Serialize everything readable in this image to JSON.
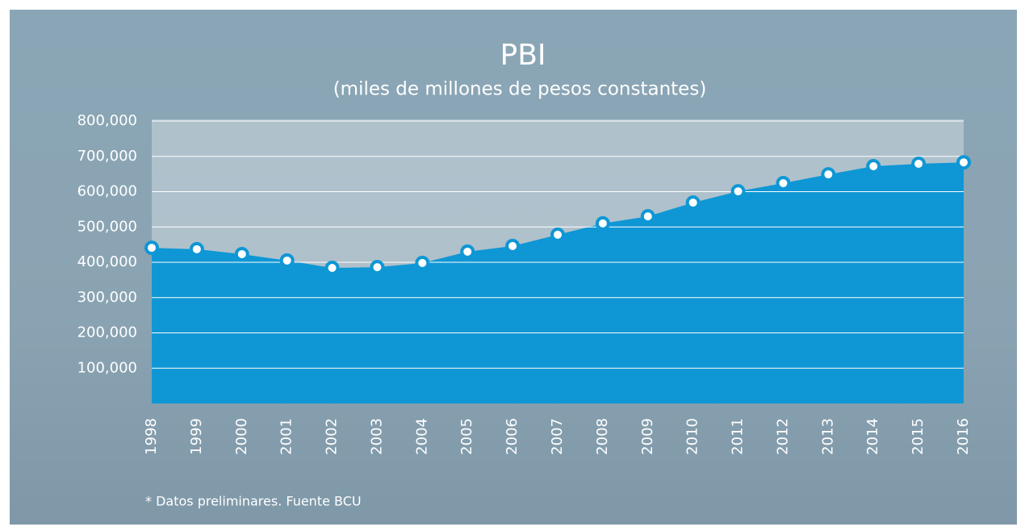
{
  "chart_data": {
    "type": "area",
    "title": "PBI",
    "subtitle": "(miles de millones de pesos constantes)",
    "note": "* Datos preliminares. Fuente BCU",
    "x": [
      1998,
      1999,
      2000,
      2001,
      2002,
      2003,
      2004,
      2005,
      2006,
      2007,
      2008,
      2009,
      2010,
      2011,
      2012,
      2013,
      2014,
      2015,
      2016
    ],
    "values": [
      441000,
      437000,
      423000,
      405000,
      384000,
      386000,
      398000,
      430000,
      446000,
      478000,
      510000,
      530000,
      569000,
      601000,
      624000,
      649000,
      672000,
      679000,
      683000
    ],
    "color": "#0f97d5",
    "xlim": [
      1998,
      2016
    ],
    "ylim": [
      0,
      800000
    ],
    "yticks": [
      {
        "value": 100000,
        "label": "100,000"
      },
      {
        "value": 200000,
        "label": "200,000"
      },
      {
        "value": 300000,
        "label": "300,000"
      },
      {
        "value": 400000,
        "label": "400,000"
      },
      {
        "value": 500000,
        "label": "500,000"
      },
      {
        "value": 600000,
        "label": "600,000"
      },
      {
        "value": 700000,
        "label": "700,000"
      },
      {
        "value": 800000,
        "label": "800,000"
      }
    ],
    "grid": true
  }
}
